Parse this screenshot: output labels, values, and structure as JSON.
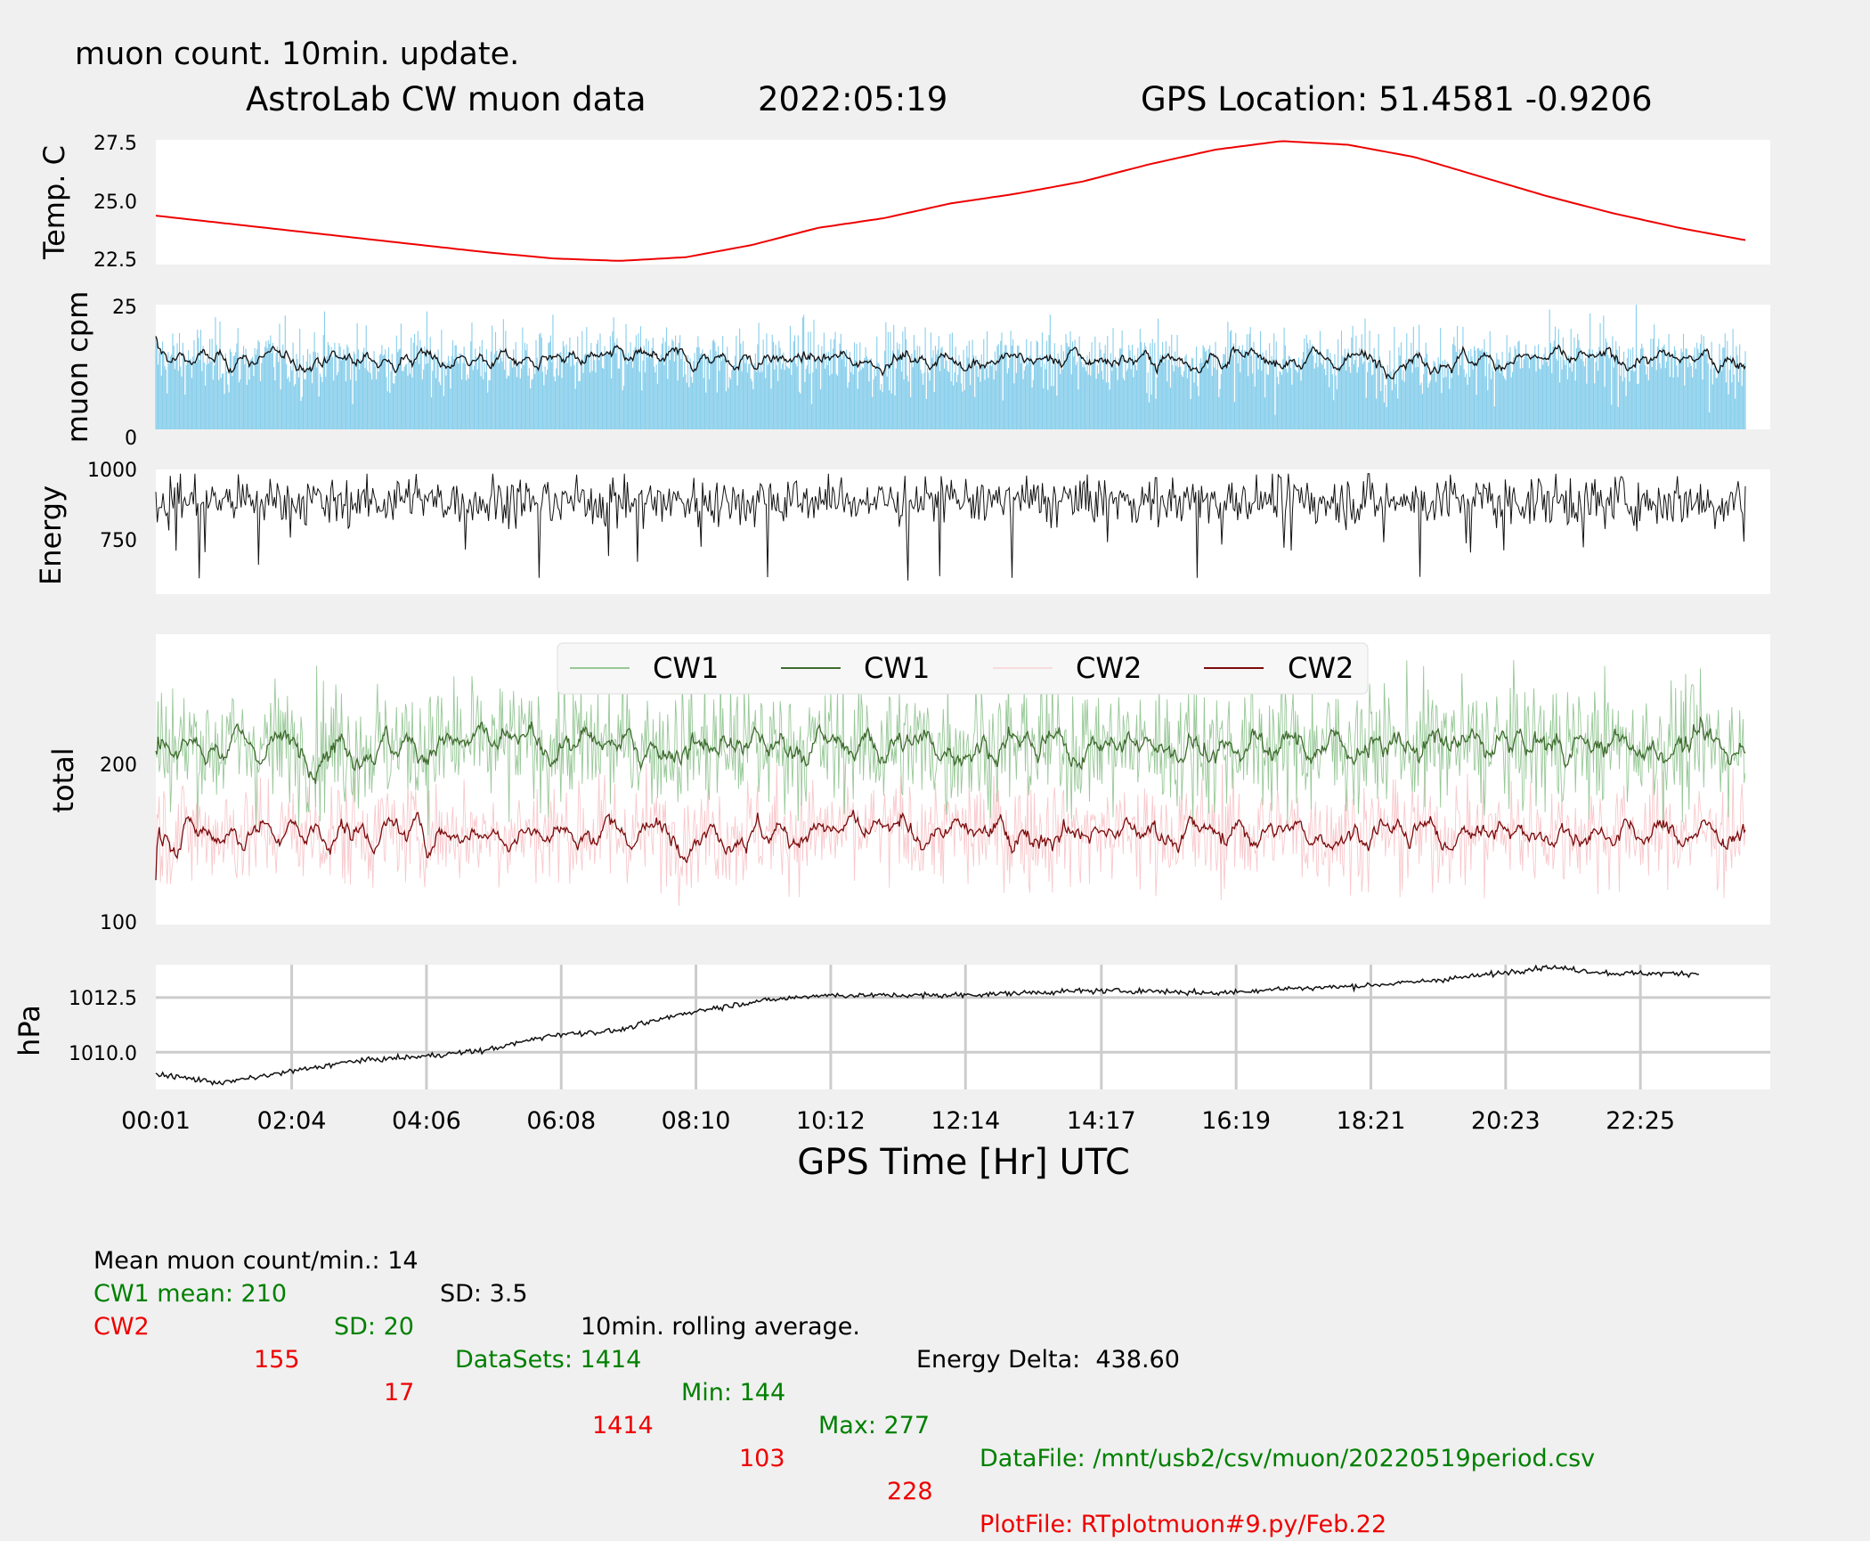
{
  "header": {
    "update_note": "muon count.  10min. update.",
    "title_left": "AstroLab CW muon data",
    "title_date": "2022:05:19",
    "title_gps": "GPS Location: 51.4581   -0.9206"
  },
  "colors": {
    "background": "#f0f0f0",
    "panel": "#ffffff",
    "temp": "#ee0000",
    "muon_bar": "#87ceeb",
    "cw1_raw": "#98c898",
    "cw1_avg": "#3f6b2e",
    "cw2_raw": "#f8c8cc",
    "cw2_avg": "#7a0a0a",
    "note_blue": "#1010ee",
    "stat_green": "#008000",
    "stat_red": "#ee0000"
  },
  "chart_data": [
    {
      "type": "line",
      "ylabel": "Temp. C",
      "yticks": [
        "22.5",
        "25.0",
        "27.5"
      ],
      "ylim": [
        22.4,
        27.5
      ],
      "x_hours": [
        0,
        1,
        2,
        3,
        4,
        5,
        6,
        7,
        8,
        9,
        10,
        11,
        12,
        13,
        14,
        15,
        16,
        17,
        18,
        19,
        20,
        21,
        22,
        23,
        24
      ],
      "values": [
        24.4,
        24.1,
        23.8,
        23.5,
        23.2,
        22.9,
        22.65,
        22.55,
        22.7,
        23.2,
        23.9,
        24.3,
        24.9,
        25.3,
        25.8,
        26.5,
        27.1,
        27.45,
        27.3,
        26.8,
        26.0,
        25.2,
        24.5,
        23.9,
        23.4
      ],
      "grid": false
    },
    {
      "type": "bar",
      "ylabel": "muon cpm",
      "yticks": [
        "0",
        "25"
      ],
      "ylim": [
        0,
        25
      ],
      "mean": 14,
      "sd": 3.5,
      "samples": 1414,
      "rolling_average_minutes": 10
    },
    {
      "type": "line",
      "ylabel": "Energy",
      "yticks": [
        "750",
        "1000"
      ],
      "ylim": [
        560,
        1000
      ],
      "typical": 890,
      "spread": 55,
      "samples": 1414
    },
    {
      "type": "line",
      "ylabel": "total",
      "yticks": [
        "100",
        "200"
      ],
      "ylim": [
        97,
        280
      ],
      "legend": {
        "placement": "top-center",
        "entries": [
          "CW1",
          "CW1",
          "CW2",
          "CW2"
        ]
      },
      "series": [
        {
          "name": "CW1",
          "mean": 210,
          "sd": 20,
          "min": 144,
          "max": 277,
          "samples": 1414
        },
        {
          "name": "CW2",
          "mean": 155,
          "sd": 17,
          "min": 103,
          "max": 228,
          "samples": 1414
        }
      ]
    },
    {
      "type": "line",
      "ylabel": "hPa",
      "yticks": [
        "1010.0",
        "1012.5"
      ],
      "ylim": [
        1008.3,
        1014.0
      ],
      "grid": true,
      "x_hours": [
        0,
        1,
        2,
        3,
        4,
        5,
        6,
        7,
        8,
        9,
        10,
        11,
        12,
        13,
        14,
        15,
        16,
        17,
        18,
        19,
        20,
        21,
        22,
        23.3
      ],
      "values": [
        1009.0,
        1008.6,
        1009.1,
        1009.6,
        1009.8,
        1010.1,
        1010.8,
        1011.0,
        1011.8,
        1012.3,
        1012.6,
        1012.6,
        1012.6,
        1012.7,
        1012.8,
        1012.8,
        1012.7,
        1012.9,
        1013.0,
        1013.2,
        1013.5,
        1013.9,
        1013.6,
        1013.6
      ]
    }
  ],
  "xaxis": {
    "label": "GPS Time  [Hr] UTC",
    "ticks": [
      "00:01",
      "02:04",
      "04:06",
      "06:08",
      "08:10",
      "10:12",
      "12:14",
      "14:17",
      "16:19",
      "18:21",
      "20:23",
      "22:25"
    ]
  },
  "stats": {
    "line1": {
      "mean": "Mean muon count/min.: 14",
      "sd": "SD: 3.5",
      "rolling": "10min. rolling average.",
      "energy": "Energy Delta:  438.60"
    },
    "cw1": {
      "mean": "CW1 mean: 210",
      "sd": "SD: 20",
      "datasets": "DataSets: 1414",
      "min": "Min: 144",
      "max": "Max: 277",
      "file": "DataFile: /mnt/usb2/csv/muon/20220519period.csv"
    },
    "cw2": {
      "name": "CW2",
      "mean": "155",
      "sd": "17",
      "datasets": "1414",
      "min": "103",
      "max": "228",
      "file": "PlotFile: RTplotmuon#9.py/Feb.22"
    }
  }
}
